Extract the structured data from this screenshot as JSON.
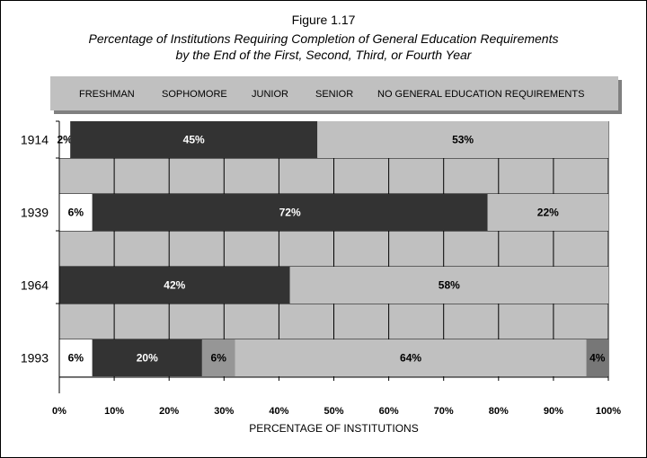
{
  "figure_label": "Figure 1.17",
  "chart_data": {
    "type": "bar",
    "orientation": "horizontal",
    "stacked": true,
    "title": "Percentage of Institutions Requiring Completion of General Education Requirements",
    "subtitle": "by the End of the First, Second, Third, or Fourth Year",
    "xlabel": "PERCENTAGE OF INSTITUTIONS",
    "ylabel": "",
    "xlim": [
      0,
      100
    ],
    "x_ticks": [
      "0%",
      "10%",
      "20%",
      "30%",
      "40%",
      "50%",
      "60%",
      "70%",
      "80%",
      "90%",
      "100%"
    ],
    "categories": [
      "1914",
      "1939",
      "1964",
      "1993"
    ],
    "grid": true,
    "legend_position": "top",
    "series": [
      {
        "name": "FRESHMAN",
        "color": "#ffffff",
        "label_color": "#000000",
        "values": [
          2,
          6,
          0,
          6
        ],
        "labels": [
          "2%",
          "6%",
          "",
          "6%"
        ]
      },
      {
        "name": "SOPHOMORE",
        "color": "#333333",
        "label_color": "#ffffff",
        "values": [
          45,
          72,
          42,
          20
        ],
        "labels": [
          "45%",
          "72%",
          "42%",
          "20%"
        ]
      },
      {
        "name": "JUNIOR",
        "color": "#969696",
        "label_color": "#000000",
        "values": [
          0,
          0,
          0,
          6
        ],
        "labels": [
          "",
          "",
          "",
          "6%"
        ]
      },
      {
        "name": "NO GENERAL EDUCATION REQUIREMENTS",
        "color": "#c0c0c0",
        "label_color": "#000000",
        "values": [
          53,
          22,
          58,
          64
        ],
        "labels": [
          "53%",
          "22%",
          "58%",
          "64%"
        ]
      },
      {
        "name": "SENIOR",
        "color": "#777777",
        "label_color": "#000000",
        "values": [
          0,
          0,
          0,
          4
        ],
        "labels": [
          "",
          "",
          "",
          "4%"
        ]
      }
    ],
    "legend": [
      "FRESHMAN",
      "SOPHOMORE",
      "JUNIOR",
      "SENIOR",
      "NO GENERAL EDUCATION REQUIREMENTS"
    ]
  }
}
